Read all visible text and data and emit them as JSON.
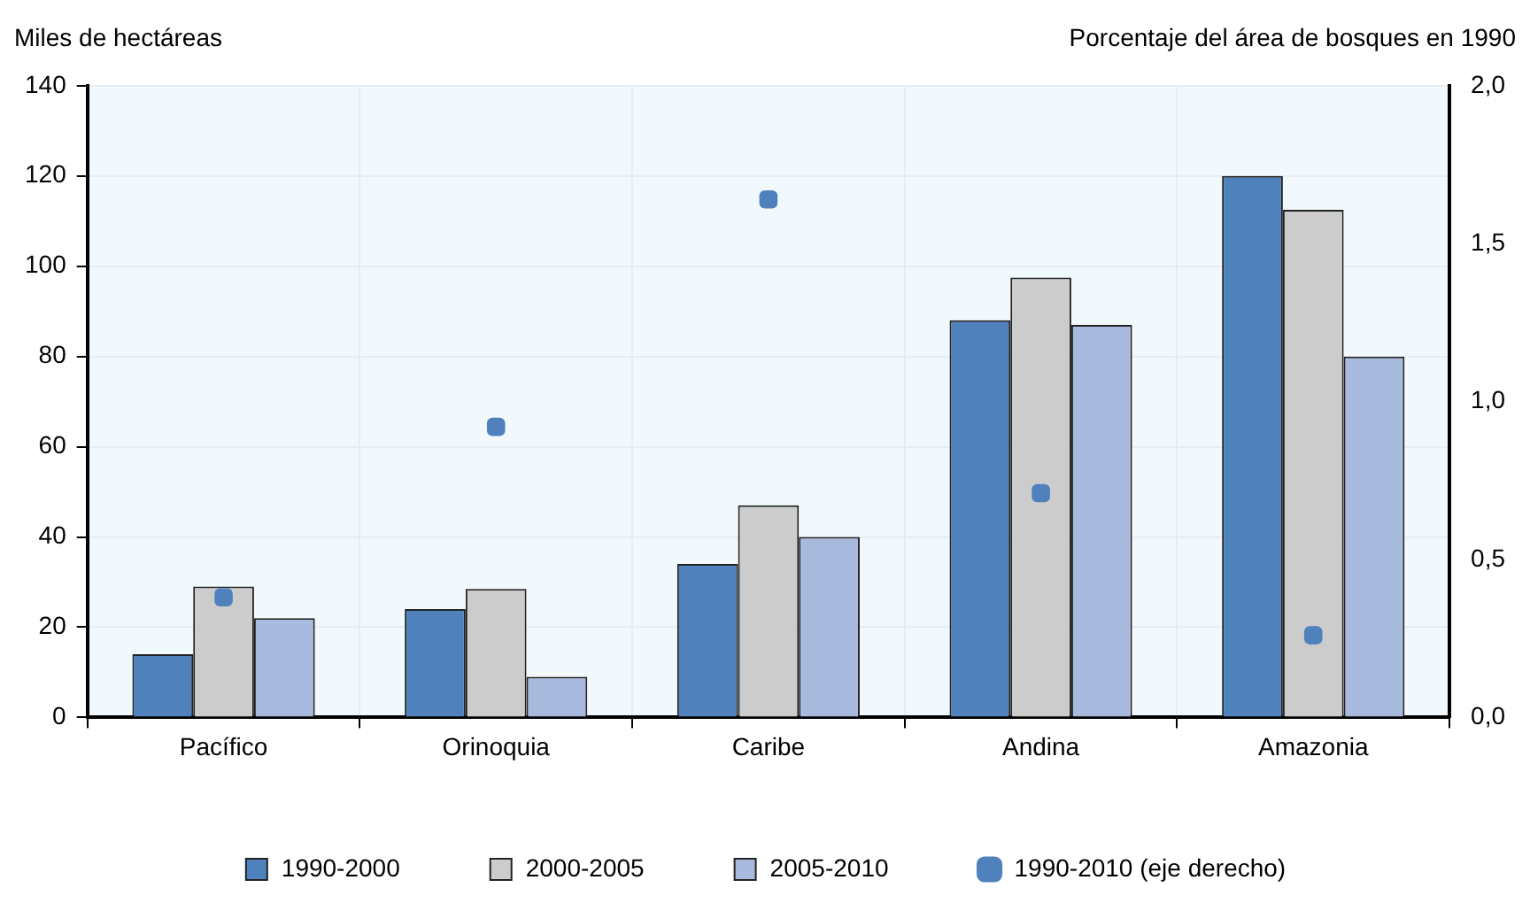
{
  "chart_data": {
    "type": "bar",
    "xlabel": null,
    "ylabel": "Miles de hectáreas",
    "y2label": "Porcentaje del área de bosques en 1990",
    "categories": [
      "Pacífico",
      "Orinoquia",
      "Caribe",
      "Andina",
      "Amazonia"
    ],
    "series": [
      {
        "name": "1990-2000",
        "color": "#4f81bd",
        "values": [
          14,
          24,
          34,
          88,
          120
        ]
      },
      {
        "name": "2000-2005",
        "color": "#cccccc",
        "values": [
          29,
          28.5,
          47,
          97.5,
          112.5
        ]
      },
      {
        "name": "2005-2010",
        "color": "#a9badf",
        "values": [
          22,
          9,
          40,
          87,
          80
        ]
      },
      {
        "name": "1990-2010 (eje derecho)",
        "type": "scatter",
        "axis": "y2",
        "color": "#4f81bd",
        "values": [
          0.38,
          0.92,
          1.64,
          0.71,
          0.26
        ]
      }
    ],
    "ylim": [
      0,
      140
    ],
    "yticks": [
      0,
      20,
      40,
      60,
      80,
      100,
      120,
      140
    ],
    "y2lim": [
      0,
      2
    ],
    "y2ticks": [
      {
        "value": 0,
        "label": "0,0"
      },
      {
        "value": 0.5,
        "label": "0,5"
      },
      {
        "value": 1,
        "label": "1,0"
      },
      {
        "value": 1.5,
        "label": "1,5"
      },
      {
        "value": 2,
        "label": "2,0"
      }
    ],
    "grid": true,
    "legend": "bottom"
  }
}
